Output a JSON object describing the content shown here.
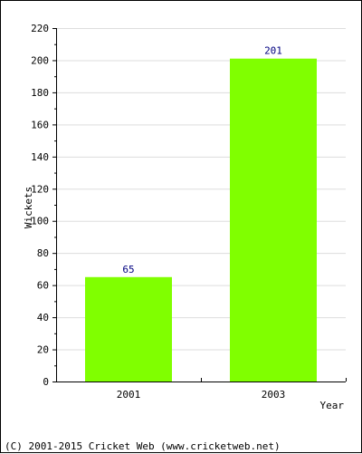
{
  "chart_data": {
    "type": "bar",
    "categories": [
      "2001",
      "2003"
    ],
    "values": [
      65,
      201
    ],
    "title": "",
    "xlabel": "Year",
    "ylabel": "Wickets",
    "ylim": [
      0,
      220
    ],
    "y_ticks": [
      0,
      20,
      40,
      60,
      80,
      100,
      120,
      140,
      160,
      180,
      200,
      220
    ],
    "data_labels": [
      "65",
      "201"
    ],
    "grid": true,
    "legend": "none"
  },
  "colors": {
    "bar": "#80FF00",
    "value_label": "#000080",
    "grid": "#DDDDDD",
    "axis": "#000000"
  },
  "footer": {
    "copyright": "(C) 2001-2015 Cricket Web (www.cricketweb.net)"
  }
}
